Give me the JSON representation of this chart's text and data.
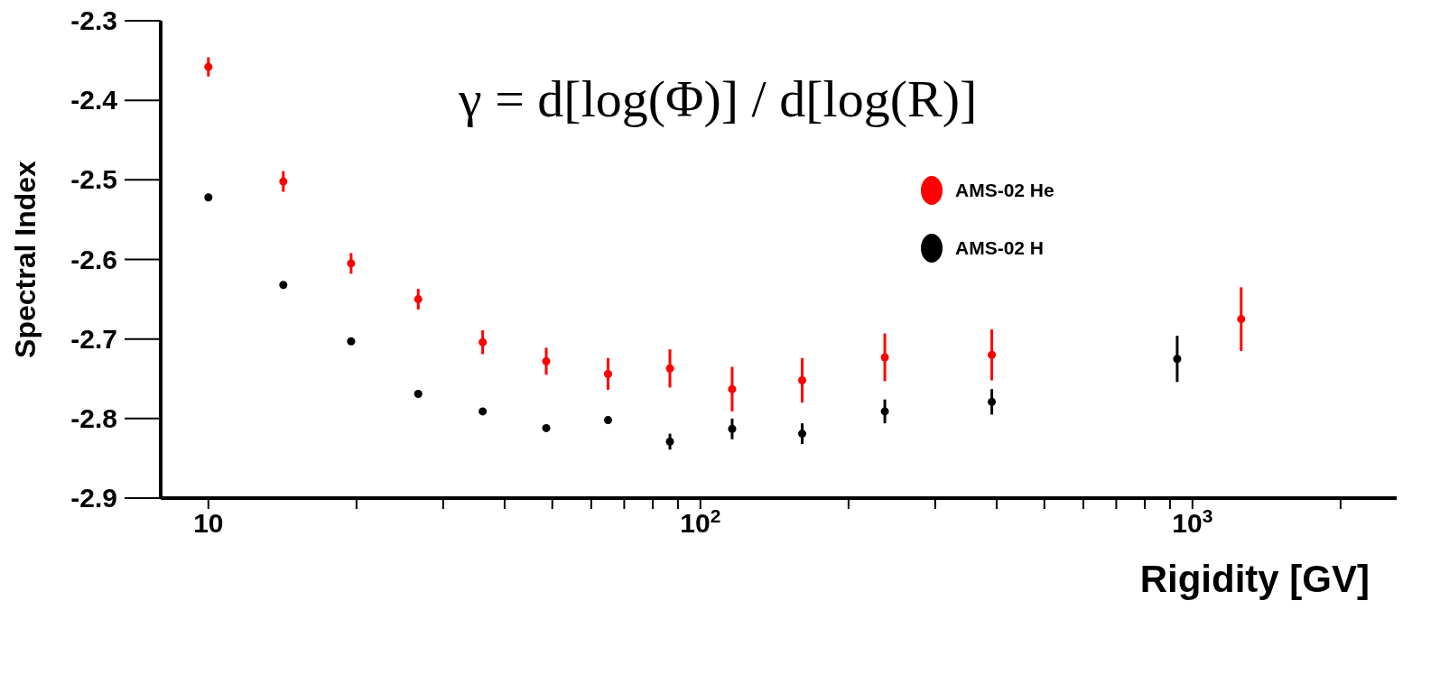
{
  "chart_data": {
    "type": "scatter",
    "xlabel": "Rigidity [GV]",
    "ylabel": "Spectral Index",
    "annotations": [
      "γ = d[log(Φ)] / d[log(R)]"
    ],
    "log": "x",
    "xlim": [
      8,
      2600
    ],
    "ylim": [
      -2.9,
      -2.3
    ],
    "xticks": [
      {
        "value": 10,
        "label": "10"
      },
      {
        "value": 20,
        "label": null
      },
      {
        "value": 30,
        "label": null
      },
      {
        "value": 40,
        "label": null
      },
      {
        "value": 50,
        "label": null
      },
      {
        "value": 60,
        "label": null
      },
      {
        "value": 70,
        "label": null
      },
      {
        "value": 80,
        "label": null
      },
      {
        "value": 90,
        "label": null
      },
      {
        "value": 100,
        "label": "10$^{2}$"
      },
      {
        "value": 200,
        "label": null
      },
      {
        "value": 300,
        "label": null
      },
      {
        "value": 400,
        "label": null
      },
      {
        "value": 500,
        "label": null
      },
      {
        "value": 600,
        "label": null
      },
      {
        "value": 700,
        "label": null
      },
      {
        "value": 800,
        "label": null
      },
      {
        "value": 900,
        "label": null
      },
      {
        "value": 1000,
        "label": "10$^{3}$"
      },
      {
        "value": 2000,
        "label": null
      }
    ],
    "yticks": [
      -2.9,
      -2.8,
      -2.7,
      -2.6,
      -2.5,
      -2.4,
      -2.3
    ],
    "grid": false,
    "legend": "top right",
    "marker": "circle",
    "series": [
      {
        "name": "AMS-02 He",
        "color": "#ff0000",
        "x": [
          10,
          14.2,
          19.5,
          26.7,
          36.1,
          48.6,
          64.9,
          86.7,
          116,
          161,
          237,
          391,
          1256
        ],
        "values": [
          -2.358,
          -2.502,
          -2.605,
          -2.65,
          -2.704,
          -2.728,
          -2.744,
          -2.737,
          -2.763,
          -2.752,
          -2.723,
          -2.72,
          -2.675
        ],
        "errors": [
          0.012,
          0.013,
          0.013,
          0.013,
          0.015,
          0.017,
          0.02,
          0.024,
          0.028,
          0.028,
          0.03,
          0.032,
          0.04
        ]
      },
      {
        "name": "AMS-02 H",
        "color": "#000000",
        "x": [
          10,
          14.2,
          19.5,
          26.7,
          36.1,
          48.6,
          64.9,
          86.7,
          116,
          161,
          237,
          391,
          931
        ],
        "values": [
          -2.522,
          -2.632,
          -2.703,
          -2.769,
          -2.791,
          -2.812,
          -2.802,
          -2.829,
          -2.813,
          -2.819,
          -2.791,
          -2.779,
          -2.725
        ],
        "errors": [
          null,
          null,
          null,
          null,
          null,
          null,
          0.005,
          0.01,
          0.013,
          0.013,
          0.015,
          0.016,
          0.029
        ]
      }
    ]
  }
}
